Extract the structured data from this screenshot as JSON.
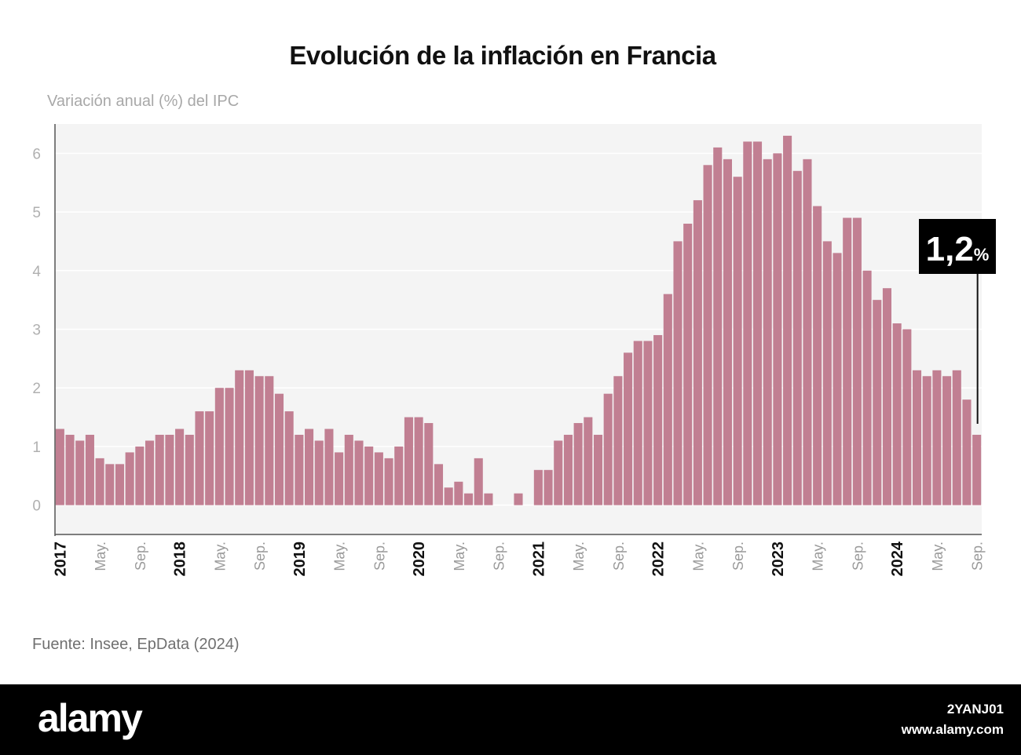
{
  "chart_data": {
    "type": "bar",
    "title": "Evolución de la inflación en Francia",
    "subtitle": "Variación anual (%) del IPC",
    "source": "Fuente: Insee, EpData (2024)",
    "x_tick_labels": [
      {
        "label": "2017",
        "index": 0,
        "bold": true
      },
      {
        "label": "May.",
        "index": 4,
        "bold": false
      },
      {
        "label": "Sep.",
        "index": 8,
        "bold": false
      },
      {
        "label": "2018",
        "index": 12,
        "bold": true
      },
      {
        "label": "May.",
        "index": 16,
        "bold": false
      },
      {
        "label": "Sep.",
        "index": 20,
        "bold": false
      },
      {
        "label": "2019",
        "index": 24,
        "bold": true
      },
      {
        "label": "May.",
        "index": 28,
        "bold": false
      },
      {
        "label": "Sep.",
        "index": 32,
        "bold": false
      },
      {
        "label": "2020",
        "index": 36,
        "bold": true
      },
      {
        "label": "May.",
        "index": 40,
        "bold": false
      },
      {
        "label": "Sep.",
        "index": 44,
        "bold": false
      },
      {
        "label": "2021",
        "index": 48,
        "bold": true
      },
      {
        "label": "May.",
        "index": 52,
        "bold": false
      },
      {
        "label": "Sep.",
        "index": 56,
        "bold": false
      },
      {
        "label": "2022",
        "index": 60,
        "bold": true
      },
      {
        "label": "May.",
        "index": 64,
        "bold": false
      },
      {
        "label": "Sep.",
        "index": 68,
        "bold": false
      },
      {
        "label": "2023",
        "index": 72,
        "bold": true
      },
      {
        "label": "May.",
        "index": 76,
        "bold": false
      },
      {
        "label": "Sep.",
        "index": 80,
        "bold": false
      },
      {
        "label": "2024",
        "index": 84,
        "bold": true
      },
      {
        "label": "May.",
        "index": 88,
        "bold": false
      },
      {
        "label": "Sep.",
        "index": 92,
        "bold": false
      }
    ],
    "values": [
      1.3,
      1.2,
      1.1,
      1.2,
      0.8,
      0.7,
      0.7,
      0.9,
      1.0,
      1.1,
      1.2,
      1.2,
      1.3,
      1.2,
      1.6,
      1.6,
      2.0,
      2.0,
      2.3,
      2.3,
      2.2,
      2.2,
      1.9,
      1.6,
      1.2,
      1.3,
      1.1,
      1.3,
      0.9,
      1.2,
      1.1,
      1.0,
      0.9,
      0.8,
      1.0,
      1.5,
      1.5,
      1.4,
      0.7,
      0.3,
      0.4,
      0.2,
      0.8,
      0.2,
      0.0,
      0.0,
      0.2,
      0.0,
      0.6,
      0.6,
      1.1,
      1.2,
      1.4,
      1.5,
      1.2,
      1.9,
      2.2,
      2.6,
      2.8,
      2.8,
      2.9,
      3.6,
      4.5,
      4.8,
      5.2,
      5.8,
      6.1,
      5.9,
      5.6,
      6.2,
      6.2,
      5.9,
      6.0,
      6.3,
      5.7,
      5.9,
      5.1,
      4.5,
      4.3,
      4.9,
      4.9,
      4.0,
      3.5,
      3.7,
      3.1,
      3.0,
      2.3,
      2.2,
      2.3,
      2.2,
      2.3,
      1.8,
      1.2
    ],
    "ylim": [
      -0.5,
      6.5
    ],
    "yticks": [
      0,
      1,
      2,
      3,
      4,
      5,
      6
    ],
    "grid": true,
    "bar_color": "#c17f92",
    "plot_background": "#f4f4f4",
    "callout": {
      "value": "1,2",
      "unit": "%",
      "index": 92
    }
  },
  "watermark": {
    "brand": "alamy",
    "image_id": "2YANJ01",
    "url": "www.alamy.com"
  }
}
